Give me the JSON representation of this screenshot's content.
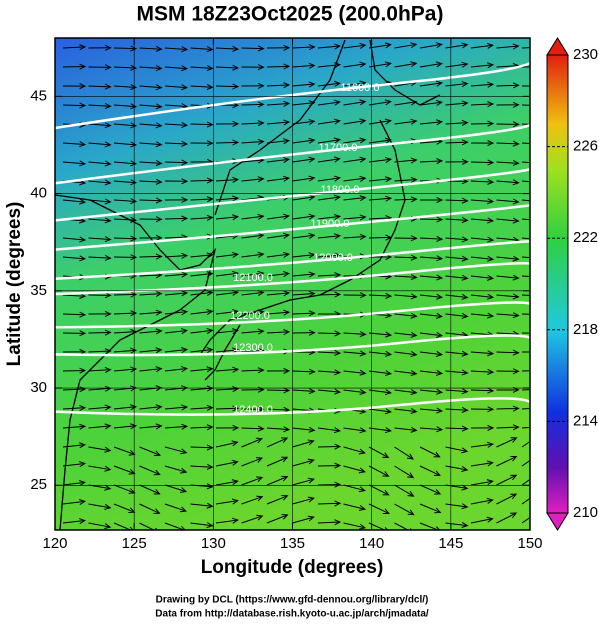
{
  "chart_data": {
    "type": "vector-field",
    "title": "MSM 18Z23Oct2025 (200.0hPa)",
    "x_label": "Longitude (degrees)",
    "y_label": "Latitude  (degrees)",
    "xlim": [
      120,
      150
    ],
    "xticks": [
      120,
      125,
      130,
      135,
      140,
      145,
      150
    ],
    "ylim": [
      22.7,
      48
    ],
    "yticks": [
      25,
      30,
      35,
      40,
      45
    ],
    "colorbar": {
      "lim": [
        210,
        230
      ],
      "ticks": [
        210,
        214,
        218,
        222,
        226,
        230
      ]
    },
    "contour_labels": [
      "11600.0",
      "11700.0",
      "11800.0",
      "11900.0",
      "12000.0",
      "12100.0",
      "12200.0",
      "12300.0",
      "12400.0"
    ],
    "credits": [
      "Drawing by DCL (https://www.gfd-dennou.org/library/dcl/)",
      "Data from http://database.rish.kyoto-u.ac.jp/arch/jmadata/"
    ]
  }
}
